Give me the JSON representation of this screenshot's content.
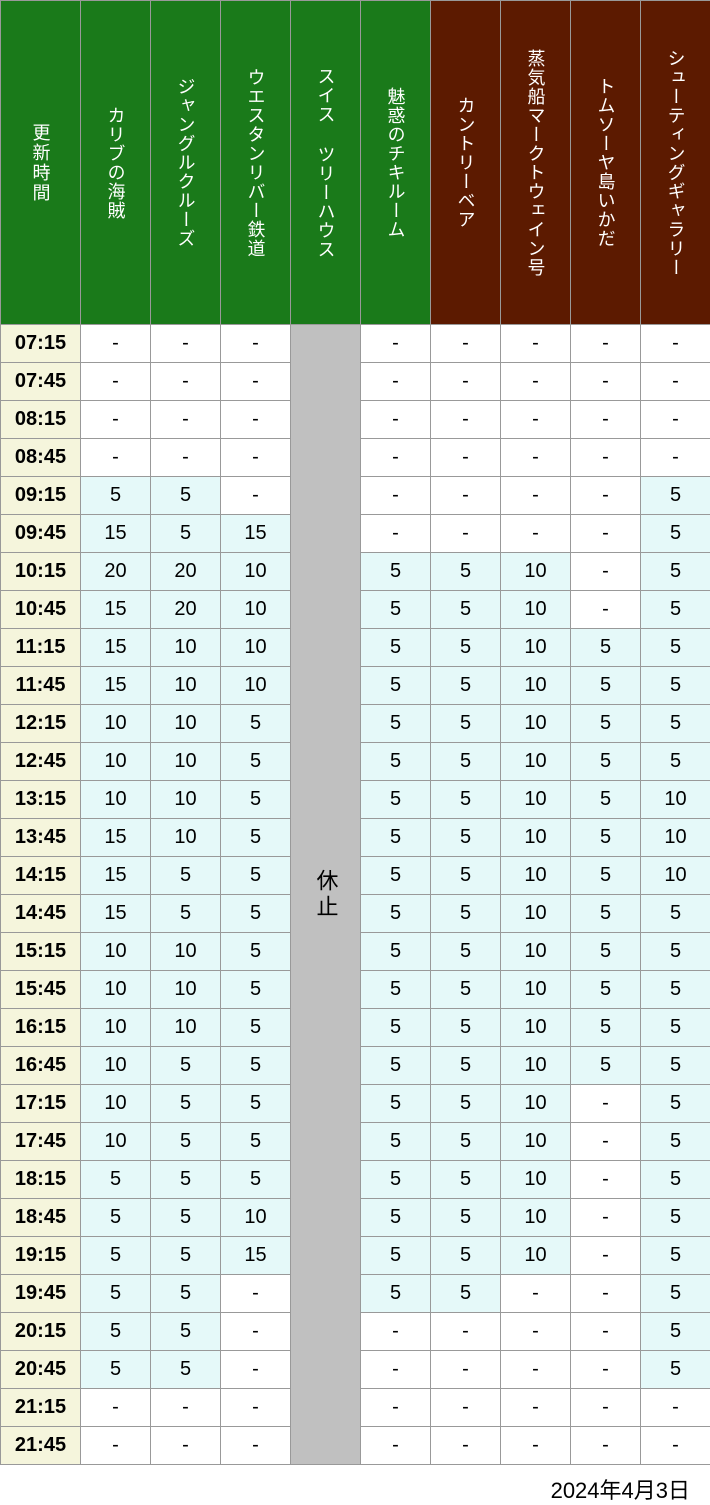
{
  "headers": {
    "time": "更新時間",
    "attractions": [
      {
        "label": "カリブの海賊",
        "color": "green"
      },
      {
        "label": "ジャングルクルーズ",
        "color": "green"
      },
      {
        "label": "ウエスタンリバー鉄道",
        "color": "green"
      },
      {
        "label": "スイス ツリーハウス",
        "color": "green"
      },
      {
        "label": "魅惑のチキルーム",
        "color": "green"
      },
      {
        "label": "カントリーベア",
        "color": "brown"
      },
      {
        "label": "蒸気船マークトウェイン号",
        "color": "brown"
      },
      {
        "label": "トムソーヤ島いかだ",
        "color": "brown"
      },
      {
        "label": "シューティングギャラリー",
        "color": "brown"
      }
    ]
  },
  "closed_label": "休止",
  "closed_column_index": 3,
  "times": [
    "07:15",
    "07:45",
    "08:15",
    "08:45",
    "09:15",
    "09:45",
    "10:15",
    "10:45",
    "11:15",
    "11:45",
    "12:15",
    "12:45",
    "13:15",
    "13:45",
    "14:15",
    "14:45",
    "15:15",
    "15:45",
    "16:15",
    "16:45",
    "17:15",
    "17:45",
    "18:15",
    "18:45",
    "19:15",
    "19:45",
    "20:15",
    "20:45",
    "21:15",
    "21:45"
  ],
  "rows": [
    [
      "-",
      "-",
      "-",
      null,
      "-",
      "-",
      "-",
      "-",
      "-"
    ],
    [
      "-",
      "-",
      "-",
      null,
      "-",
      "-",
      "-",
      "-",
      "-"
    ],
    [
      "-",
      "-",
      "-",
      null,
      "-",
      "-",
      "-",
      "-",
      "-"
    ],
    [
      "-",
      "-",
      "-",
      null,
      "-",
      "-",
      "-",
      "-",
      "-"
    ],
    [
      "5",
      "5",
      "-",
      null,
      "-",
      "-",
      "-",
      "-",
      "5"
    ],
    [
      "15",
      "5",
      "15",
      null,
      "-",
      "-",
      "-",
      "-",
      "5"
    ],
    [
      "20",
      "20",
      "10",
      null,
      "5",
      "5",
      "10",
      "-",
      "5"
    ],
    [
      "15",
      "20",
      "10",
      null,
      "5",
      "5",
      "10",
      "-",
      "5"
    ],
    [
      "15",
      "10",
      "10",
      null,
      "5",
      "5",
      "10",
      "5",
      "5"
    ],
    [
      "15",
      "10",
      "10",
      null,
      "5",
      "5",
      "10",
      "5",
      "5"
    ],
    [
      "10",
      "10",
      "5",
      null,
      "5",
      "5",
      "10",
      "5",
      "5"
    ],
    [
      "10",
      "10",
      "5",
      null,
      "5",
      "5",
      "10",
      "5",
      "5"
    ],
    [
      "10",
      "10",
      "5",
      null,
      "5",
      "5",
      "10",
      "5",
      "10"
    ],
    [
      "15",
      "10",
      "5",
      null,
      "5",
      "5",
      "10",
      "5",
      "10"
    ],
    [
      "15",
      "5",
      "5",
      null,
      "5",
      "5",
      "10",
      "5",
      "10"
    ],
    [
      "15",
      "5",
      "5",
      null,
      "5",
      "5",
      "10",
      "5",
      "5"
    ],
    [
      "10",
      "10",
      "5",
      null,
      "5",
      "5",
      "10",
      "5",
      "5"
    ],
    [
      "10",
      "10",
      "5",
      null,
      "5",
      "5",
      "10",
      "5",
      "5"
    ],
    [
      "10",
      "10",
      "5",
      null,
      "5",
      "5",
      "10",
      "5",
      "5"
    ],
    [
      "10",
      "5",
      "5",
      null,
      "5",
      "5",
      "10",
      "5",
      "5"
    ],
    [
      "10",
      "5",
      "5",
      null,
      "5",
      "5",
      "10",
      "-",
      "5"
    ],
    [
      "10",
      "5",
      "5",
      null,
      "5",
      "5",
      "10",
      "-",
      "5"
    ],
    [
      "5",
      "5",
      "5",
      null,
      "5",
      "5",
      "10",
      "-",
      "5"
    ],
    [
      "5",
      "5",
      "10",
      null,
      "5",
      "5",
      "10",
      "-",
      "5"
    ],
    [
      "5",
      "5",
      "15",
      null,
      "5",
      "5",
      "10",
      "-",
      "5"
    ],
    [
      "5",
      "5",
      "-",
      null,
      "5",
      "5",
      "-",
      "-",
      "5"
    ],
    [
      "5",
      "5",
      "-",
      null,
      "-",
      "-",
      "-",
      "-",
      "5"
    ],
    [
      "5",
      "5",
      "-",
      null,
      "-",
      "-",
      "-",
      "-",
      "5"
    ],
    [
      "-",
      "-",
      "-",
      null,
      "-",
      "-",
      "-",
      "-",
      "-"
    ],
    [
      "-",
      "-",
      "-",
      null,
      "-",
      "-",
      "-",
      "-",
      "-"
    ]
  ],
  "colors": {
    "green_header_bg": "#1a7a1a",
    "brown_header_bg": "#5c1a00",
    "header_text": "#ffffff",
    "time_cell_bg": "#f5f5dc",
    "white_cell_bg": "#ffffff",
    "blue_cell_bg": "#e5f9f9",
    "closed_cell_bg": "#c0c0c0",
    "border": "#999999"
  },
  "fonts": {
    "header_size": 18,
    "cell_size": 20,
    "closed_size": 22,
    "date_size": 22
  },
  "date": "2024年4月3日"
}
